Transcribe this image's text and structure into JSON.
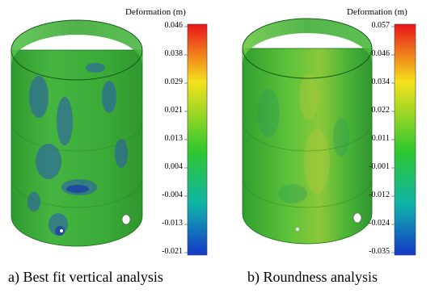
{
  "panels": [
    {
      "id": "a",
      "colorbar": {
        "title": "Deformation (m)",
        "ticks": [
          "0.046",
          "0.038",
          "0.029",
          "0.021",
          "0.013",
          "0.004",
          "-0.004",
          "-0.013",
          "-0.021"
        ]
      },
      "caption": "a) Best fit vertical analysis"
    },
    {
      "id": "b",
      "colorbar": {
        "title": "Deformation (m)",
        "ticks": [
          "0.057",
          "0.046",
          "0.034",
          "0.022",
          "0.011",
          "-0.001",
          "-0.012",
          "-0.024",
          "-0.035"
        ]
      },
      "caption": "b) Roundness analysis"
    }
  ],
  "colors": {
    "scale_top": "#e8141a",
    "scale_upper": "#f5e21c",
    "scale_mid": "#2ec82e",
    "scale_low": "#0fb4a8",
    "scale_bottom": "#1438c8",
    "surface": "#3fb83a"
  }
}
